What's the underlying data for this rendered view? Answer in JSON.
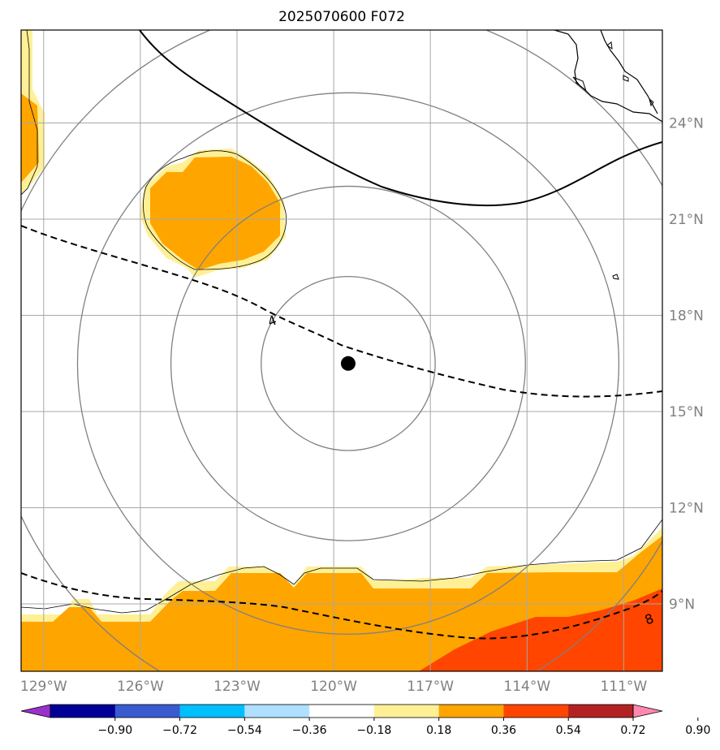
{
  "title": "2025070600 F072",
  "map": {
    "lon_range": [
      -129.7,
      -109.8
    ],
    "lat_range": [
      6.9,
      26.9
    ],
    "longitude_ticks": [
      {
        "value": -129,
        "label": "129°W"
      },
      {
        "value": -126,
        "label": "126°W"
      },
      {
        "value": -123,
        "label": "123°W"
      },
      {
        "value": -120,
        "label": "120°W"
      },
      {
        "value": -117,
        "label": "117°W"
      },
      {
        "value": -114,
        "label": "114°W"
      },
      {
        "value": -111,
        "label": "111°W"
      }
    ],
    "latitude_ticks": [
      {
        "value": 24,
        "label": "24°N"
      },
      {
        "value": 21,
        "label": "21°N"
      },
      {
        "value": 18,
        "label": "18°N"
      },
      {
        "value": 15,
        "label": "15°N"
      },
      {
        "value": 12,
        "label": "12°N"
      },
      {
        "value": 9,
        "label": "9°N"
      }
    ],
    "gridlines": true,
    "storm_center": {
      "lon": -119.55,
      "lat": 16.5
    },
    "range_rings": [
      2.7,
      5.5,
      8.4,
      11.2
    ],
    "contour_labels": [
      {
        "text": "4",
        "lon": -121.9,
        "lat": 17.8
      },
      {
        "text": "8",
        "lon": -110.2,
        "lat": 8.5
      }
    ]
  },
  "colorbar": {
    "labels": [
      "−0.90",
      "−0.72",
      "−0.54",
      "−0.36",
      "−0.18",
      "0.18",
      "0.36",
      "0.54",
      "0.72",
      "0.90"
    ],
    "colors": [
      "#9932CC",
      "#000096",
      "#3A5BD0",
      "#00BFFF",
      "#B0E0FF",
      "#FFFFFF",
      "#FFF096",
      "#FFA500",
      "#FF4500",
      "#B22222",
      "#FF88B0"
    ],
    "under_color": "#9932CC",
    "over_color": "#FF88B0"
  },
  "fill_colors": {
    "light": "#FFF096",
    "mid": "#FFA500",
    "high": "#FF4500"
  }
}
